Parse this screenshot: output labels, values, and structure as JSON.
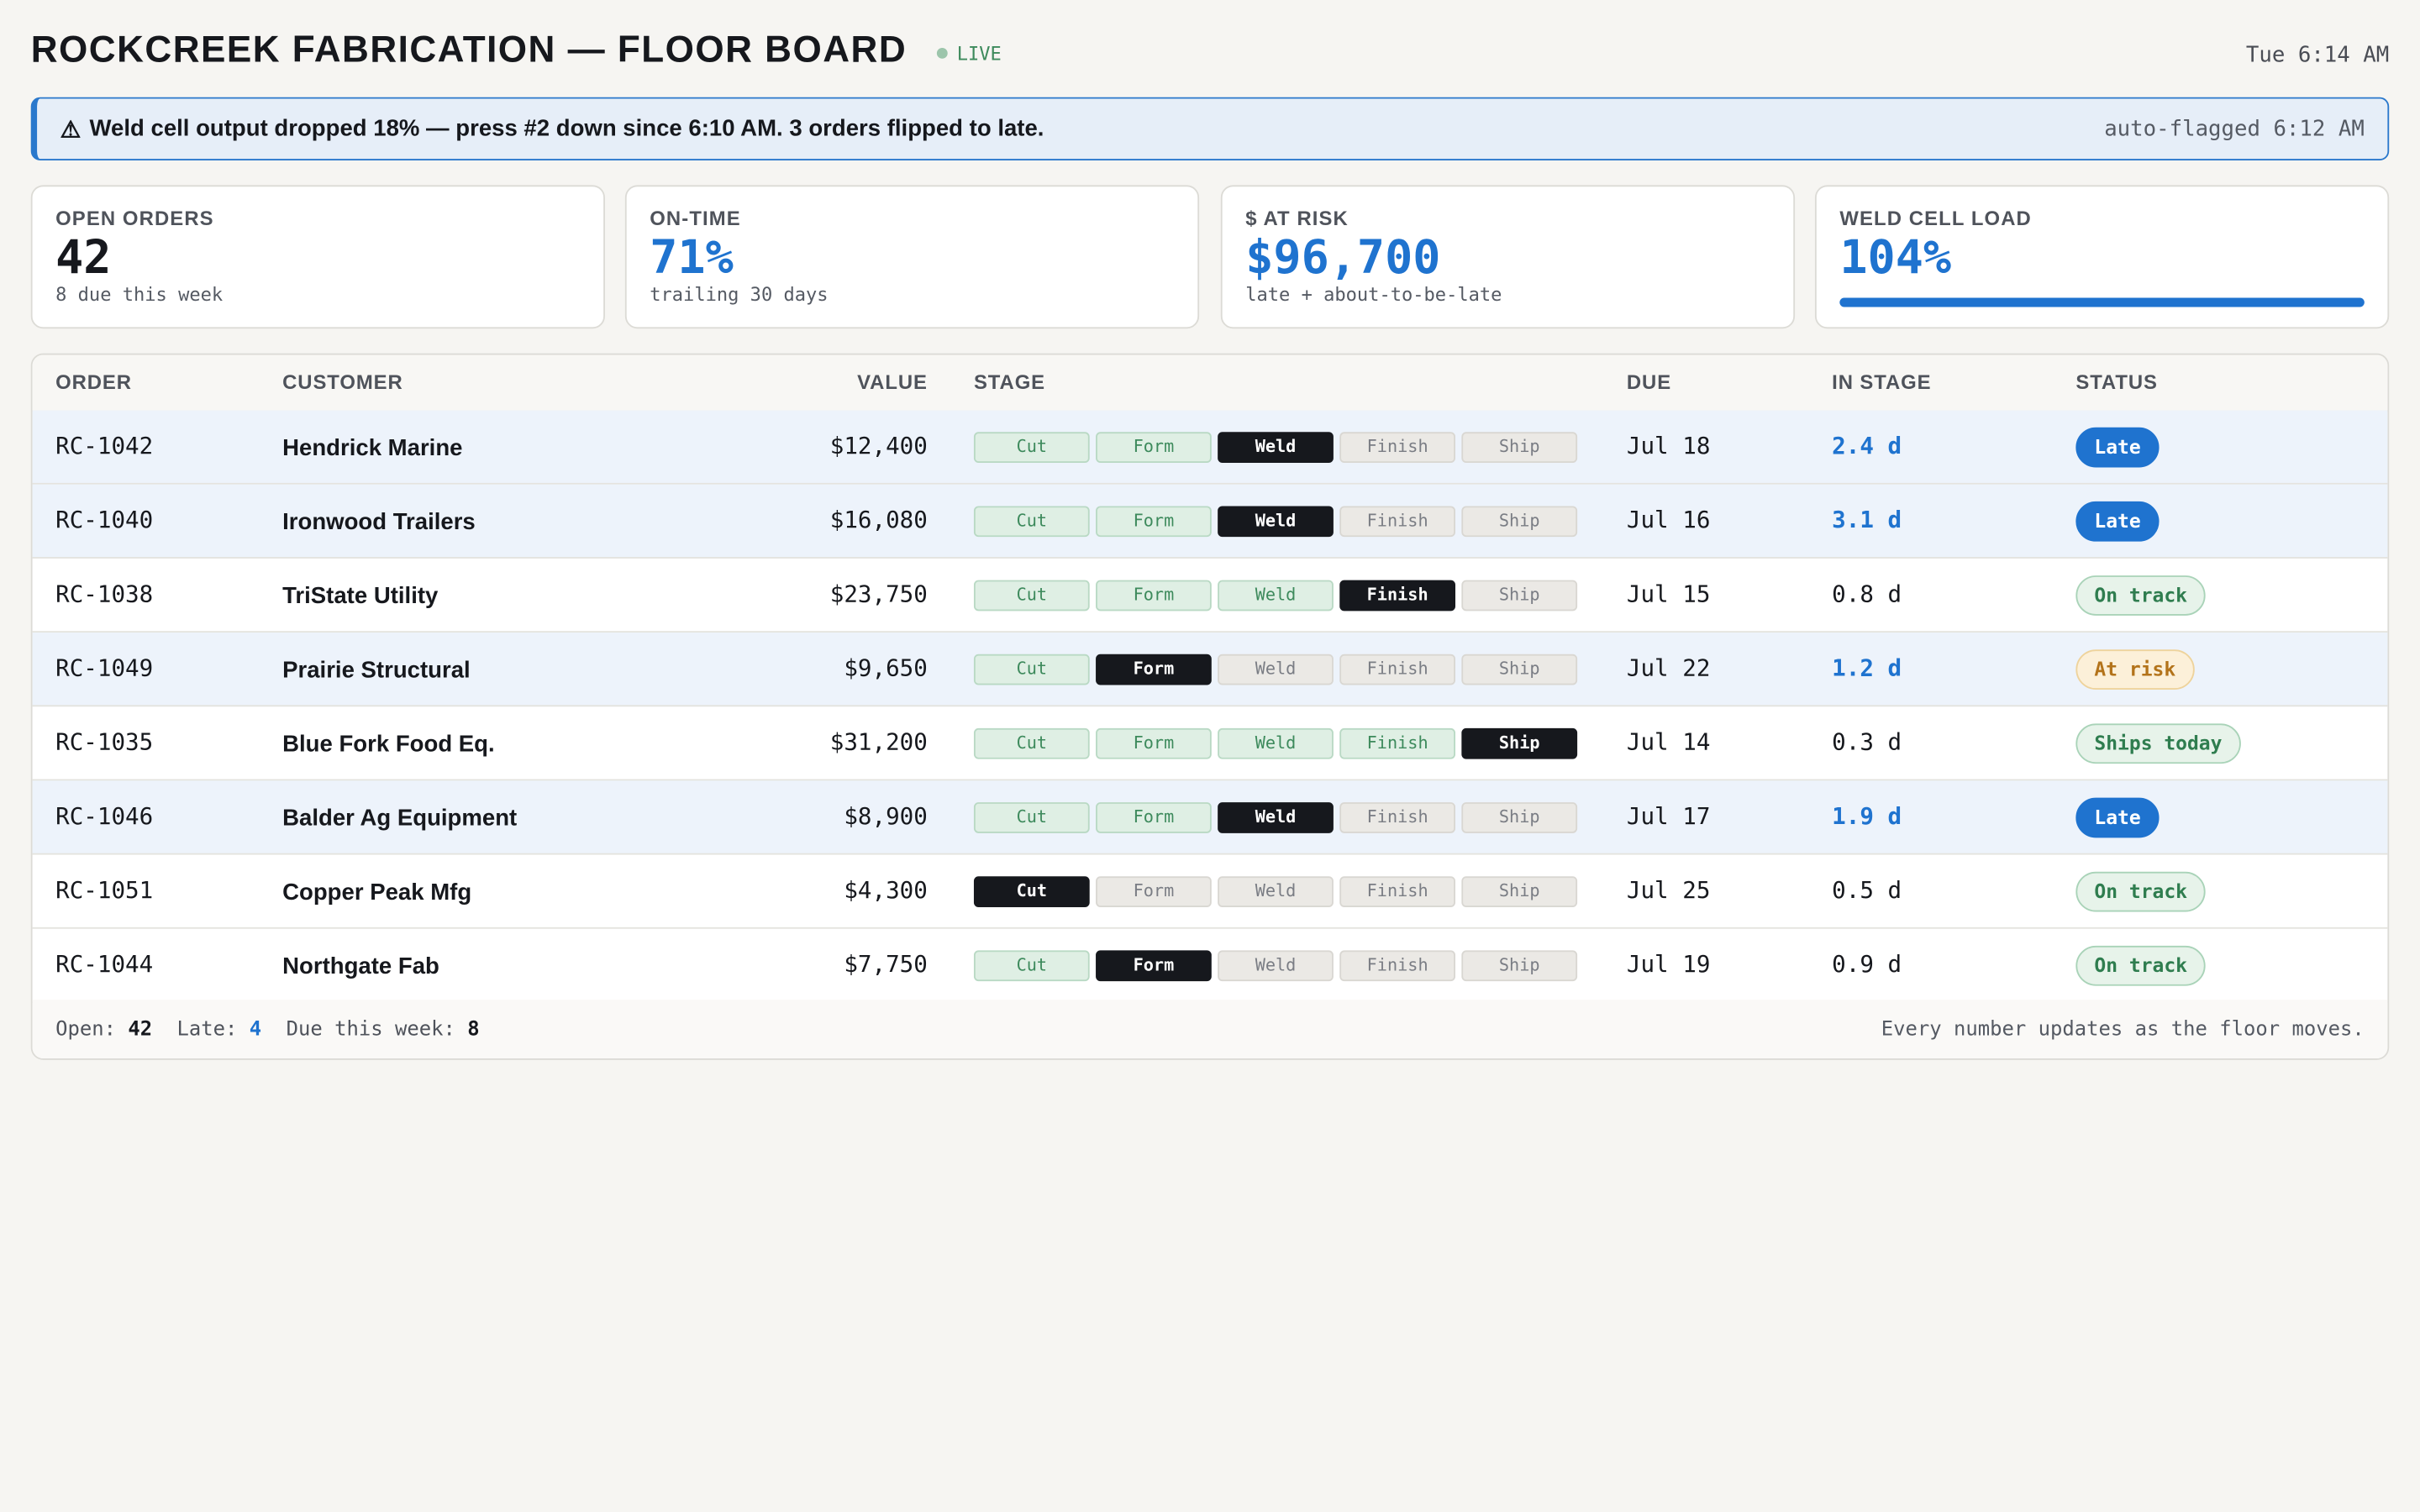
{
  "header": {
    "title": "ROCKCREEK FABRICATION — FLOOR BOARD",
    "live_label": "LIVE",
    "clock": "Tue 6:14 AM"
  },
  "alert": {
    "icon": "⚠",
    "message": "Weld cell output dropped 18% — press #2 down since 6:10 AM. 3 orders flipped to late.",
    "meta": "auto-flagged 6:12 AM"
  },
  "kpis": [
    {
      "label": "OPEN ORDERS",
      "value": "42",
      "sub": "8 due this week"
    },
    {
      "label": "ON-TIME",
      "value": "71%",
      "sub": "trailing 30 days"
    },
    {
      "label": "$ AT RISK",
      "value": "$96,700",
      "sub": "late + about-to-be-late"
    },
    {
      "label": "WELD CELL LOAD",
      "value": "104%",
      "load_fraction": 1.0
    }
  ],
  "table": {
    "columns": [
      "ORDER",
      "CUSTOMER",
      "VALUE",
      "STAGE",
      "DUE",
      "IN STAGE",
      "STATUS"
    ],
    "stage_names": [
      "Cut",
      "Form",
      "Weld",
      "Finish",
      "Ship"
    ],
    "rows": [
      {
        "order": "RC-1042",
        "customer": "Hendrick Marine",
        "value": "$12,400",
        "stage_index": 2,
        "due": "Jul 18",
        "in_stage": "2.4 d",
        "status": "Late"
      },
      {
        "order": "RC-1040",
        "customer": "Ironwood Trailers",
        "value": "$16,080",
        "stage_index": 2,
        "due": "Jul 16",
        "in_stage": "3.1 d",
        "status": "Late"
      },
      {
        "order": "RC-1038",
        "customer": "TriState Utility",
        "value": "$23,750",
        "stage_index": 3,
        "due": "Jul 15",
        "in_stage": "0.8 d",
        "status": "On track"
      },
      {
        "order": "RC-1049",
        "customer": "Prairie Structural",
        "value": "$9,650",
        "stage_index": 1,
        "due": "Jul 22",
        "in_stage": "1.2 d",
        "status": "At risk"
      },
      {
        "order": "RC-1035",
        "customer": "Blue Fork Food Eq.",
        "value": "$31,200",
        "stage_index": 4,
        "due": "Jul 14",
        "in_stage": "0.3 d",
        "status": "Ships today"
      },
      {
        "order": "RC-1046",
        "customer": "Balder Ag Equipment",
        "value": "$8,900",
        "stage_index": 2,
        "due": "Jul 17",
        "in_stage": "1.9 d",
        "status": "Late"
      },
      {
        "order": "RC-1051",
        "customer": "Copper Peak Mfg",
        "value": "$4,300",
        "stage_index": 0,
        "due": "Jul 25",
        "in_stage": "0.5 d",
        "status": "On track"
      },
      {
        "order": "RC-1044",
        "customer": "Northgate Fab",
        "value": "$7,750",
        "stage_index": 1,
        "due": "Jul 19",
        "in_stage": "0.9 d",
        "status": "On track"
      }
    ]
  },
  "footer": {
    "open_label": "Open:",
    "open_value": "42",
    "late_label": "Late:",
    "late_value": "4",
    "due_label": "Due this week:",
    "due_value": "8",
    "note": "Every number updates as the floor moves."
  },
  "colors": {
    "accent": "#1f73cf",
    "background": "#f6f5f2",
    "done_stage": "#dfefe4",
    "current_stage": "#16181d",
    "at_risk": "#b3731a"
  }
}
